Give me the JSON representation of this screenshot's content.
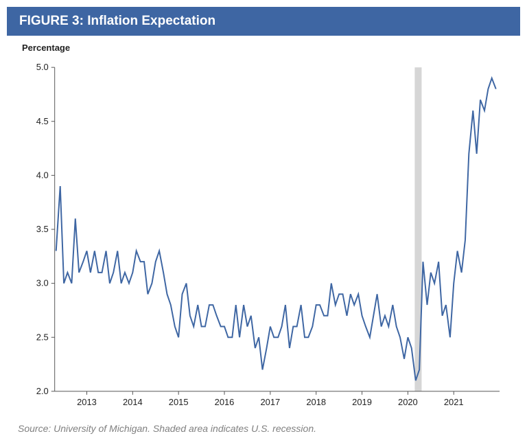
{
  "header": {
    "title": "FIGURE 3: Inflation Expectation",
    "background_color": "#3e66a3"
  },
  "chart": {
    "type": "line",
    "y_axis_title": "Percentage",
    "ylim": [
      2.0,
      5.0
    ],
    "yticks": [
      2.0,
      2.5,
      3.0,
      3.5,
      4.0,
      4.5,
      5.0
    ],
    "ytick_labels": [
      "2.0",
      "2.5",
      "3.0",
      "3.5",
      "4.0",
      "4.5",
      "5.0"
    ],
    "xlim": [
      2012.3,
      2022.0
    ],
    "xticks": [
      2013,
      2014,
      2015,
      2016,
      2017,
      2018,
      2019,
      2020,
      2021
    ],
    "xtick_labels": [
      "2013",
      "2014",
      "2015",
      "2016",
      "2017",
      "2018",
      "2019",
      "2020",
      "2021"
    ],
    "line_color": "#3e66a3",
    "line_width": 2,
    "axis_color": "#555555",
    "text_color": "#222222",
    "background_color": "#ffffff",
    "recession": {
      "start": 2020.15,
      "end": 2020.3,
      "color": "#d6d6d6"
    },
    "series": {
      "x": [
        2012.33,
        2012.42,
        2012.5,
        2012.58,
        2012.67,
        2012.75,
        2012.83,
        2012.92,
        2013.0,
        2013.08,
        2013.17,
        2013.25,
        2013.33,
        2013.42,
        2013.5,
        2013.58,
        2013.67,
        2013.75,
        2013.83,
        2013.92,
        2014.0,
        2014.08,
        2014.17,
        2014.25,
        2014.33,
        2014.42,
        2014.5,
        2014.58,
        2014.67,
        2014.75,
        2014.83,
        2014.92,
        2015.0,
        2015.08,
        2015.17,
        2015.25,
        2015.33,
        2015.42,
        2015.5,
        2015.58,
        2015.67,
        2015.75,
        2015.83,
        2015.92,
        2016.0,
        2016.08,
        2016.17,
        2016.25,
        2016.33,
        2016.42,
        2016.5,
        2016.58,
        2016.67,
        2016.75,
        2016.83,
        2016.92,
        2017.0,
        2017.08,
        2017.17,
        2017.25,
        2017.33,
        2017.42,
        2017.5,
        2017.58,
        2017.67,
        2017.75,
        2017.83,
        2017.92,
        2018.0,
        2018.08,
        2018.17,
        2018.25,
        2018.33,
        2018.42,
        2018.5,
        2018.58,
        2018.67,
        2018.75,
        2018.83,
        2018.92,
        2019.0,
        2019.08,
        2019.17,
        2019.25,
        2019.33,
        2019.42,
        2019.5,
        2019.58,
        2019.67,
        2019.75,
        2019.83,
        2019.92,
        2020.0,
        2020.08,
        2020.17,
        2020.25,
        2020.33,
        2020.42,
        2020.5,
        2020.58,
        2020.67,
        2020.75,
        2020.83,
        2020.92,
        2021.0,
        2021.08,
        2021.17,
        2021.25,
        2021.33,
        2021.42,
        2021.5,
        2021.58,
        2021.67,
        2021.75,
        2021.83,
        2021.92
      ],
      "y": [
        3.3,
        3.9,
        3.0,
        3.1,
        3.0,
        3.6,
        3.1,
        3.2,
        3.3,
        3.1,
        3.3,
        3.1,
        3.1,
        3.3,
        3.0,
        3.1,
        3.3,
        3.0,
        3.1,
        3.0,
        3.1,
        3.3,
        3.2,
        3.2,
        2.9,
        3.0,
        3.2,
        3.3,
        3.1,
        2.9,
        2.8,
        2.6,
        2.5,
        2.9,
        3.0,
        2.7,
        2.6,
        2.8,
        2.6,
        2.6,
        2.8,
        2.8,
        2.7,
        2.6,
        2.6,
        2.5,
        2.5,
        2.8,
        2.5,
        2.8,
        2.6,
        2.7,
        2.4,
        2.5,
        2.2,
        2.4,
        2.6,
        2.5,
        2.5,
        2.6,
        2.8,
        2.4,
        2.6,
        2.6,
        2.8,
        2.5,
        2.5,
        2.6,
        2.8,
        2.8,
        2.7,
        2.7,
        3.0,
        2.8,
        2.9,
        2.9,
        2.7,
        2.9,
        2.8,
        2.9,
        2.7,
        2.6,
        2.5,
        2.7,
        2.9,
        2.6,
        2.7,
        2.6,
        2.8,
        2.6,
        2.5,
        2.3,
        2.5,
        2.4,
        2.1,
        2.2,
        3.2,
        2.8,
        3.1,
        3.0,
        3.2,
        2.7,
        2.8,
        2.5,
        3.0,
        3.3,
        3.1,
        3.4,
        4.2,
        4.6,
        4.2,
        4.7,
        4.6,
        4.8,
        4.9,
        4.8
      ]
    }
  },
  "footer": {
    "source_note": "Source: University of Michigan. Shaded area indicates U.S. recession.",
    "note_color": "#808080"
  },
  "fonts": {
    "title_fontsize": 19,
    "axis_title_fontsize": 13,
    "tick_fontsize": 13,
    "note_fontsize": 14
  }
}
